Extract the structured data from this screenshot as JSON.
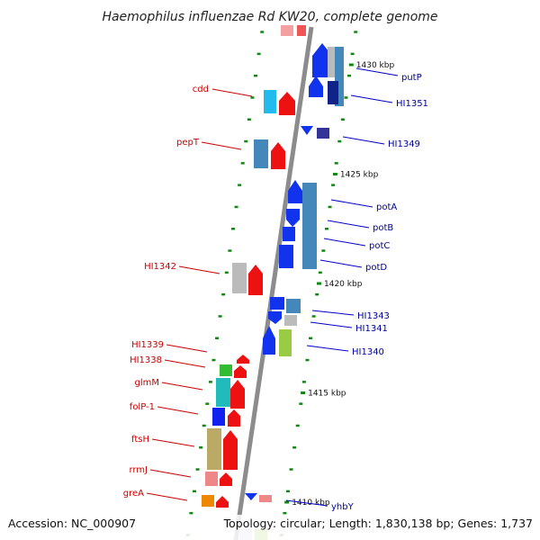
{
  "title": "Haemophilus influenzae Rd KW20, complete genome",
  "footer": {
    "accession": "Accession: NC_000907",
    "topology": "Topology: circular; Length: 1,830,138 bp; Genes: 1,737"
  },
  "colors": {
    "left_label": "#cc0000",
    "right_label": "#000099",
    "axis": "#888888",
    "tick": "#118811"
  },
  "scale_labels": [
    {
      "text": "1430 kbp",
      "pos": 1430
    },
    {
      "text": "1425 kbp",
      "pos": 1425
    },
    {
      "text": "1420 kbp",
      "pos": 1420
    },
    {
      "text": "1415 kbp",
      "pos": 1415
    },
    {
      "text": "1410 kbp",
      "pos": 1410
    }
  ],
  "left_genes": [
    {
      "name": "cdd",
      "fill": "#22bbee"
    },
    {
      "name": "pepT",
      "fill": "#4488bb"
    },
    {
      "name": "HI1342",
      "fill": "#bbbbbb"
    },
    {
      "name": "HI1339",
      "fill": "#ff2222"
    },
    {
      "name": "HI1338",
      "fill": "#33bb33"
    },
    {
      "name": "glmM",
      "fill": "#22bbbb"
    },
    {
      "name": "folP-1",
      "fill": "#1122ee"
    },
    {
      "name": "ftsH",
      "fill": "#bbaa66"
    },
    {
      "name": "rrmJ",
      "fill": "#ee8888"
    },
    {
      "name": "greA",
      "fill": "#ee8800"
    }
  ],
  "right_genes": [
    {
      "name": "putP",
      "fill": "#4488bb"
    },
    {
      "name": "HI1351",
      "fill": "#112288"
    },
    {
      "name": "HI1349",
      "fill": "#333399"
    },
    {
      "name": "potA",
      "fill": "#1133ee"
    },
    {
      "name": "potB",
      "fill": "#4488bb"
    },
    {
      "name": "potC",
      "fill": "#1133ee"
    },
    {
      "name": "potD",
      "fill": "#4488bb"
    },
    {
      "name": "HI1343",
      "fill": "#1133ee"
    },
    {
      "name": "HI1341",
      "fill": "#bbbbbb"
    },
    {
      "name": "HI1340",
      "fill": "#99cc44"
    },
    {
      "name": "yhbY",
      "fill": "#ee8888"
    }
  ]
}
